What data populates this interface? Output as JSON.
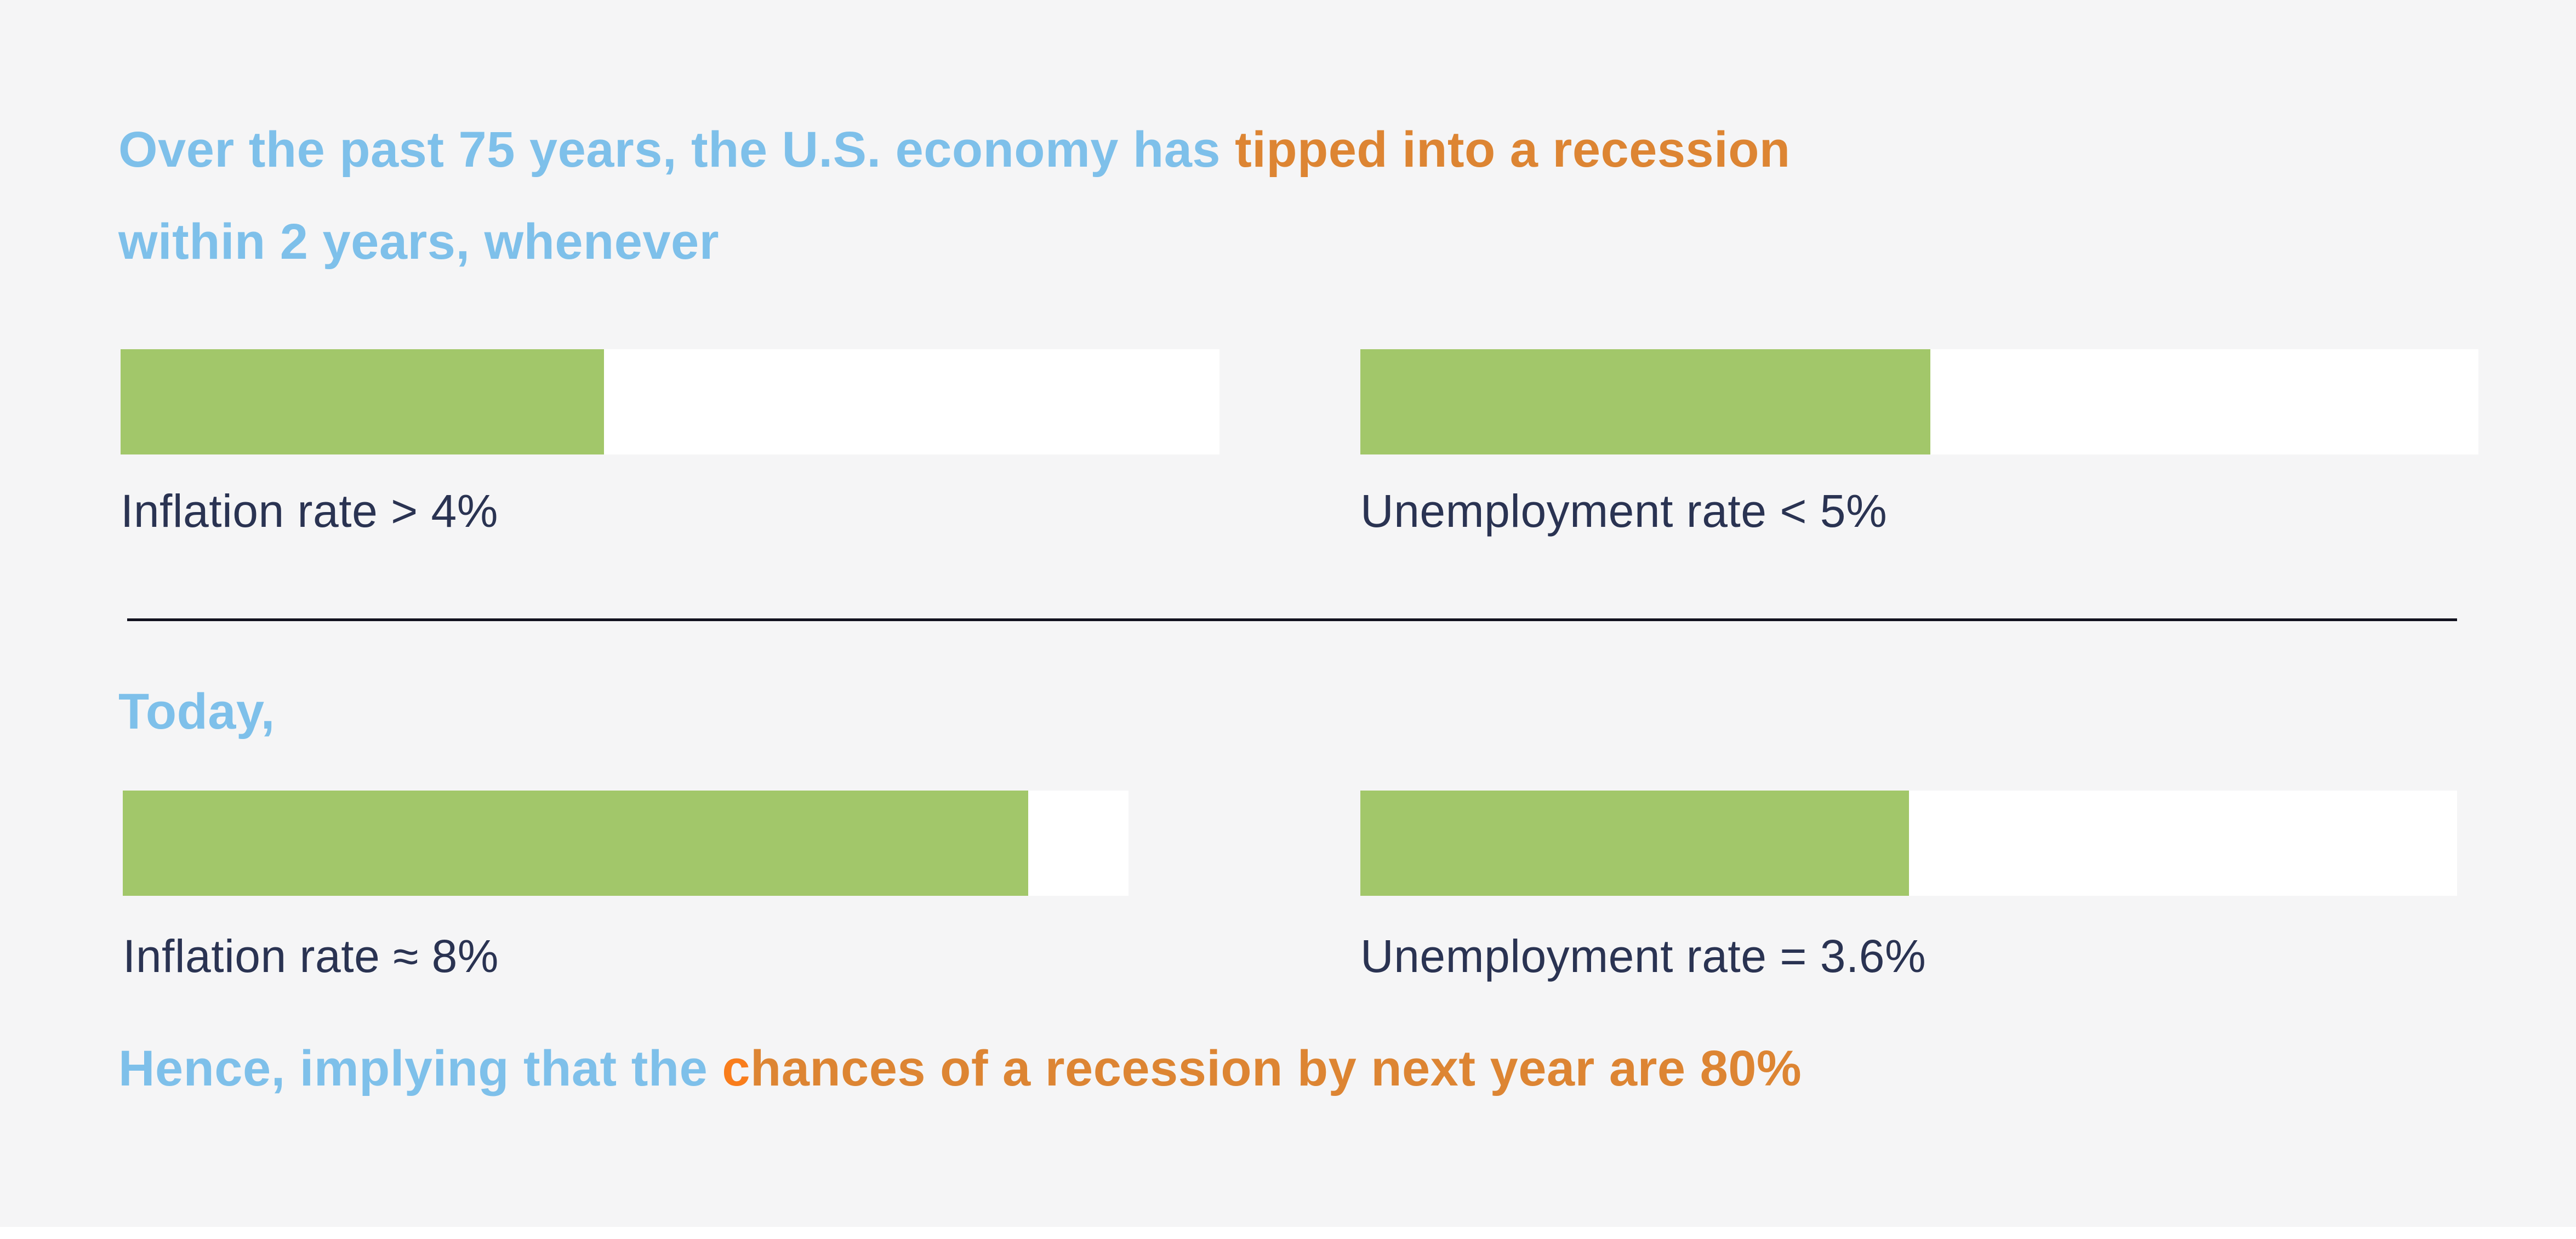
{
  "colors": {
    "background": "#f5f5f6",
    "headline_blue": "#7ec0ea",
    "headline_orange": "#dd8533",
    "conclusion_first_letter_orange": "#f97d1c",
    "bar_fill_green": "#a2c76a",
    "bar_track_white": "#ffffff",
    "label_navy": "#2a3352",
    "divider_dark": "#12121f"
  },
  "headline": {
    "line1": [
      {
        "text": "Over the past 75 years, the U.S. economy has "
      },
      {
        "text": "tipped into a recession"
      }
    ],
    "line2": [
      {
        "text": "within 2 years, whenever"
      }
    ]
  },
  "conclusion_segments": [
    {
      "text": "Hence, implying that the "
    },
    {
      "text": "c"
    },
    {
      "text": "hances of a recession by next year are 80%"
    }
  ],
  "chart_data": {
    "type": "bar",
    "title": "Over the past 75 years, the U.S. economy has tipped into a recession within 2 years, whenever",
    "sections": [
      {
        "name": "past-75-years",
        "bars": [
          {
            "label": "Inflation rate > 4%",
            "fill_pct": 44
          },
          {
            "label": "Unemployment rate < 5%",
            "fill_pct": 51
          }
        ]
      },
      {
        "name": "today",
        "heading": "Today,",
        "bars": [
          {
            "label": "Inflation rate ≈ 8%",
            "fill_pct": 90
          },
          {
            "label": "Unemployment rate = 3.6%",
            "fill_pct": 50
          }
        ]
      }
    ],
    "conclusion": "Hence, implying that the chances of a recession by next year are 80%"
  }
}
